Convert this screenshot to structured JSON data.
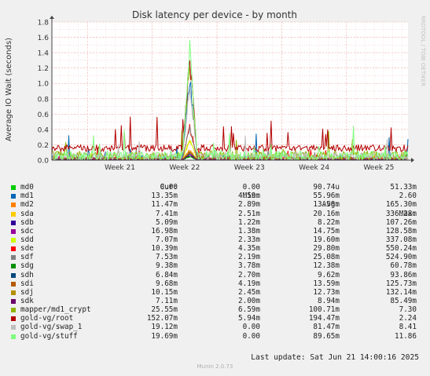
{
  "chart_data": {
    "type": "line",
    "title": "Disk latency per device - by month",
    "ylabel": "Average IO Wait (seconds)",
    "xlabel": "",
    "watermark": "RRDTOOL / TOBI OETIKER",
    "ylim": [
      0,
      1.8
    ],
    "y_ticks": [
      {
        "value": 0.0,
        "label": "0.0"
      },
      {
        "value": 0.2,
        "label": "0.2"
      },
      {
        "value": 0.4,
        "label": "0.4"
      },
      {
        "value": 0.6,
        "label": "0.6"
      },
      {
        "value": 0.8,
        "label": "0.8"
      },
      {
        "value": 1.0,
        "label": "1.0"
      },
      {
        "value": 1.2,
        "label": "1.2"
      },
      {
        "value": 1.4,
        "label": "1.4"
      },
      {
        "value": 1.6,
        "label": "1.6"
      },
      {
        "value": 1.8,
        "label": "1.8"
      }
    ],
    "x_range_weeks": [
      20.45,
      25.95
    ],
    "x_ticks": [
      {
        "value": 21,
        "label": "Week 21"
      },
      {
        "value": 22,
        "label": "Week 22"
      },
      {
        "value": 23,
        "label": "Week 23"
      },
      {
        "value": 24,
        "label": "Week 24"
      },
      {
        "value": 25,
        "label": "Week 25"
      }
    ],
    "grid": true,
    "colors": {
      "background": "#f0f0f0",
      "plot_background": "#ffffff",
      "grid": "#f0b4b4",
      "axis": "#444444"
    },
    "legend_headers": {
      "cur": "Cur:",
      "min": "Min:",
      "avg": "Avg:",
      "max": "Max:"
    },
    "series": [
      {
        "name": "md0",
        "color": "#00cc00",
        "cur": "0.00",
        "min": "0.00",
        "avg": "90.74u",
        "max": "51.33m",
        "base": 0.0,
        "noise": 0.01,
        "spike": 0.05
      },
      {
        "name": "md1",
        "color": "#0066b3",
        "cur": "13.35m",
        "min": "4.59m",
        "avg": "55.96m",
        "max": "2.60",
        "base": 0.03,
        "noise": 0.03,
        "spike": 1.25
      },
      {
        "name": "md2",
        "color": "#ff8000",
        "cur": "11.47m",
        "min": "2.89m",
        "avg": "13.58m",
        "max": "165.30m",
        "base": 0.012,
        "noise": 0.006,
        "spike": 0.15
      },
      {
        "name": "sda",
        "color": "#ffcc00",
        "cur": "7.41m",
        "min": "2.51m",
        "avg": "20.16m",
        "max": "336.28m",
        "base": 0.018,
        "noise": 0.012,
        "spike": 0.3
      },
      {
        "name": "sdb",
        "color": "#330099",
        "cur": "5.09m",
        "min": "1.22m",
        "avg": "8.22m",
        "max": "107.26m",
        "base": 0.008,
        "noise": 0.004,
        "spike": 0.1
      },
      {
        "name": "sdc",
        "color": "#990099",
        "cur": "16.98m",
        "min": "1.38m",
        "avg": "14.75m",
        "max": "128.58m",
        "base": 0.014,
        "noise": 0.008,
        "spike": 0.12
      },
      {
        "name": "sdd",
        "color": "#ccff00",
        "cur": "7.07m",
        "min": "2.33m",
        "avg": "19.60m",
        "max": "337.08m",
        "base": 0.018,
        "noise": 0.012,
        "spike": 0.3
      },
      {
        "name": "sde",
        "color": "#ff0000",
        "cur": "10.39m",
        "min": "4.35m",
        "avg": "29.80m",
        "max": "550.24m",
        "base": 0.028,
        "noise": 0.015,
        "spike": 0.5
      },
      {
        "name": "sdf",
        "color": "#808080",
        "cur": "7.53m",
        "min": "2.19m",
        "avg": "25.08m",
        "max": "524.90m",
        "base": 0.022,
        "noise": 0.015,
        "spike": 0.48
      },
      {
        "name": "sdg",
        "color": "#008f00",
        "cur": "9.38m",
        "min": "3.78m",
        "avg": "12.38m",
        "max": "60.78m",
        "base": 0.012,
        "noise": 0.005,
        "spike": 0.06
      },
      {
        "name": "sdh",
        "color": "#00487d",
        "cur": "6.84m",
        "min": "2.70m",
        "avg": "9.62m",
        "max": "93.86m",
        "base": 0.009,
        "noise": 0.004,
        "spike": 0.09
      },
      {
        "name": "sdi",
        "color": "#b35a00",
        "cur": "9.68m",
        "min": "4.19m",
        "avg": "13.59m",
        "max": "125.73m",
        "base": 0.013,
        "noise": 0.005,
        "spike": 0.12
      },
      {
        "name": "sdj",
        "color": "#b38f00",
        "cur": "10.15m",
        "min": "2.45m",
        "avg": "12.73m",
        "max": "132.14m",
        "base": 0.012,
        "noise": 0.006,
        "spike": 0.13
      },
      {
        "name": "sdk",
        "color": "#6b006b",
        "cur": "7.11m",
        "min": "2.00m",
        "avg": "8.94m",
        "max": "85.49m",
        "base": 0.009,
        "noise": 0.004,
        "spike": 0.08
      },
      {
        "name": "mapper/md1_crypt",
        "color": "#8fb300",
        "cur": "25.55m",
        "min": "6.59m",
        "avg": "100.71m",
        "max": "7.30",
        "base": 0.06,
        "noise": 0.06,
        "spike": 1.5
      },
      {
        "name": "gold-vg/root",
        "color": "#b30000",
        "cur": "152.07m",
        "min": "5.94m",
        "avg": "194.47m",
        "max": "2.24",
        "base": 0.155,
        "noise": 0.045,
        "spike": 1.53
      },
      {
        "name": "gold-vg/swap_1",
        "color": "#bebebe",
        "cur": "19.12m",
        "min": "0.00",
        "avg": "81.47m",
        "max": "8.41",
        "base": 0.05,
        "noise": 0.05,
        "spike": 1.1
      },
      {
        "name": "gold-vg/stuff",
        "color": "#80ff80",
        "cur": "19.69m",
        "min": "0.00",
        "avg": "89.65m",
        "max": "11.86",
        "base": 0.05,
        "noise": 0.07,
        "spike": 1.6
      }
    ]
  },
  "footer": {
    "last_update": "Last update: Sat Jun 21 14:00:16 2025",
    "engine": "Munin 2.0.73"
  }
}
